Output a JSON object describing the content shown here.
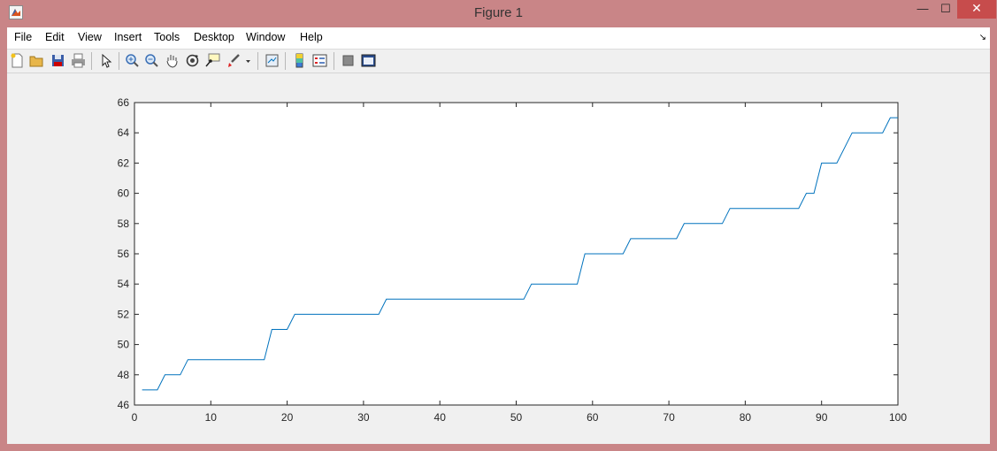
{
  "window": {
    "title": "Figure 1",
    "minimize": "—",
    "maximize": "☐",
    "close": "✕"
  },
  "menu": [
    "File",
    "Edit",
    "View",
    "Insert",
    "Tools",
    "Desktop",
    "Window",
    "Help"
  ],
  "toolbar_icons": [
    "new-figure-icon",
    "open-file-icon",
    "save-icon",
    "print-icon",
    "pointer-icon",
    "zoom-in-icon",
    "zoom-out-icon",
    "pan-icon",
    "rotate-icon",
    "data-cursor-icon",
    "brush-icon",
    "link-plot-icon",
    "colorbar-icon",
    "legend-icon",
    "hide-plot-tools-icon",
    "show-plot-tools-icon"
  ],
  "colors": {
    "line": "#0072bd",
    "axes_bg": "#ffffff",
    "figure_bg": "#f0f0f0"
  },
  "chart_data": {
    "type": "line",
    "title": "",
    "xlabel": "",
    "ylabel": "",
    "xlim": [
      0,
      100
    ],
    "ylim": [
      46,
      66
    ],
    "xticks": [
      0,
      10,
      20,
      30,
      40,
      50,
      60,
      70,
      80,
      90,
      100
    ],
    "yticks": [
      46,
      48,
      50,
      52,
      54,
      56,
      58,
      60,
      62,
      64,
      66
    ],
    "grid": false,
    "series": [
      {
        "x": [
          1,
          2,
          3,
          4,
          5,
          6,
          7,
          8,
          9,
          10,
          11,
          12,
          13,
          14,
          15,
          16,
          17,
          18,
          19,
          20,
          21,
          22,
          23,
          24,
          25,
          26,
          27,
          28,
          29,
          30,
          31,
          32,
          33,
          34,
          35,
          36,
          37,
          38,
          39,
          40,
          41,
          42,
          43,
          44,
          45,
          46,
          47,
          48,
          49,
          50,
          51,
          52,
          53,
          54,
          55,
          56,
          57,
          58,
          59,
          60,
          61,
          62,
          63,
          64,
          65,
          66,
          67,
          68,
          69,
          70,
          71,
          72,
          73,
          74,
          75,
          76,
          77,
          78,
          79,
          80,
          81,
          82,
          83,
          84,
          85,
          86,
          87,
          88,
          89,
          90,
          91,
          92,
          93,
          94,
          95,
          96,
          97,
          98,
          99,
          100
        ],
        "y": [
          47,
          47,
          47,
          48,
          48,
          48,
          49,
          49,
          49,
          49,
          49,
          49,
          49,
          49,
          49,
          49,
          49,
          51,
          51,
          51,
          52,
          52,
          52,
          52,
          52,
          52,
          52,
          52,
          52,
          52,
          52,
          52,
          53,
          53,
          53,
          53,
          53,
          53,
          53,
          53,
          53,
          53,
          53,
          53,
          53,
          53,
          53,
          53,
          53,
          53,
          53,
          54,
          54,
          54,
          54,
          54,
          54,
          54,
          56,
          56,
          56,
          56,
          56,
          56,
          57,
          57,
          57,
          57,
          57,
          57,
          57,
          58,
          58,
          58,
          58,
          58,
          58,
          59,
          59,
          59,
          59,
          59,
          59,
          59,
          59,
          59,
          59,
          60,
          60,
          62,
          62,
          62,
          63,
          64,
          64,
          64,
          64,
          64,
          65,
          65
        ]
      }
    ]
  }
}
